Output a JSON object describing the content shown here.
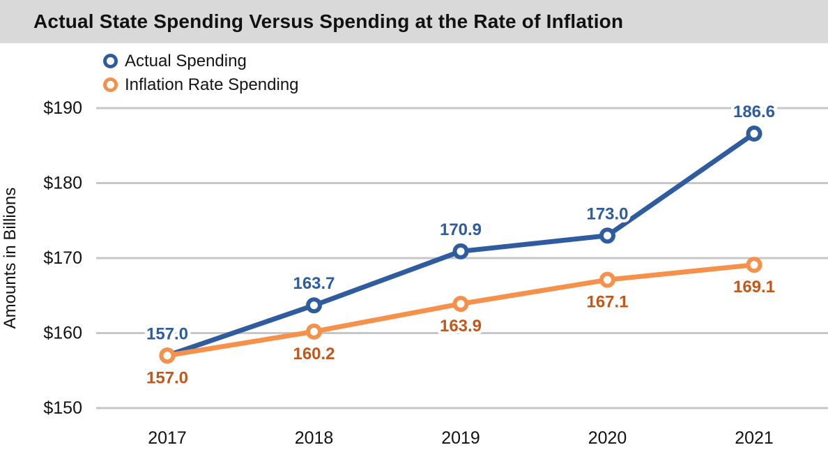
{
  "title_bar": {
    "title": "Actual State Spending Versus Spending at the Rate of Inflation",
    "background": "#D9D9D9"
  },
  "colors": {
    "gridline": "#C7C7C7",
    "actual_blue": "#2E5C9E",
    "inflation_orange": "#F5914B",
    "inflation_label_orange": "#C2571B",
    "text": "#111111"
  },
  "chart_data": {
    "type": "line",
    "title": "Actual State Spending Versus Spending at the Rate of Inflation",
    "xlabel": "",
    "ylabel": "Amounts in Billions",
    "categories": [
      "2017",
      "2018",
      "2019",
      "2020",
      "2021"
    ],
    "series": [
      {
        "name": "Actual Spending",
        "values": [
          157.0,
          163.7,
          170.9,
          173.0,
          186.6
        ],
        "color": "#2E5C9E",
        "label_color": "#2E5C9E",
        "label_position": "above"
      },
      {
        "name": "Inflation Rate Spending",
        "values": [
          157.0,
          160.2,
          163.9,
          167.1,
          169.1
        ],
        "color": "#F5914B",
        "label_color": "#C2571B",
        "label_position": "below"
      }
    ],
    "y_ticks": [
      {
        "value": 190,
        "label": "$190"
      },
      {
        "value": 180,
        "label": "$180"
      },
      {
        "value": 170,
        "label": "$170"
      },
      {
        "value": 160,
        "label": "$160"
      },
      {
        "value": 150,
        "label": "$150"
      }
    ],
    "ylim": [
      150,
      190
    ],
    "grid": "horizontal",
    "legend_position": "top-left",
    "value_label_decimals": 1
  }
}
